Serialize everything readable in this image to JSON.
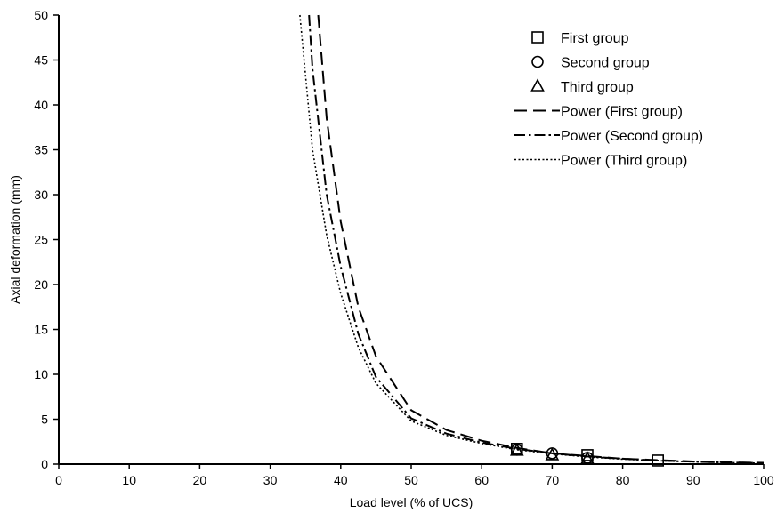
{
  "chart_data": {
    "type": "scatter",
    "title": "",
    "xlabel": "Load level (% of UCS)",
    "ylabel": "Axial deformation (mm)",
    "xlim": [
      0,
      100
    ],
    "ylim": [
      0,
      50
    ],
    "x_ticks": [
      "0",
      "10",
      "20",
      "30",
      "40",
      "50",
      "60",
      "70",
      "80",
      "90",
      "100"
    ],
    "y_ticks": [
      "0",
      "5",
      "10",
      "15",
      "20",
      "25",
      "30",
      "35",
      "40",
      "45",
      "50"
    ],
    "grid": false,
    "legend_position": "top-right",
    "series": [
      {
        "name": "First group",
        "marker": "square",
        "x": [
          65,
          75,
          85
        ],
        "y": [
          1.7,
          1.0,
          0.4
        ]
      },
      {
        "name": "Second group",
        "marker": "circle",
        "x": [
          65,
          70,
          75
        ],
        "y": [
          1.6,
          1.2,
          0.7
        ]
      },
      {
        "name": "Third group",
        "marker": "triangle",
        "x": [
          65,
          70,
          75
        ],
        "y": [
          1.5,
          1.0,
          0.6
        ]
      }
    ],
    "trendlines": [
      {
        "name": "Power (First group)",
        "style": "dashed",
        "x": [
          36.8,
          38,
          40,
          42.5,
          45,
          50,
          55,
          60,
          65,
          70,
          75,
          80,
          85,
          90,
          95,
          100
        ],
        "y": [
          50,
          38.5,
          27,
          17.5,
          12,
          6,
          3.8,
          2.6,
          1.8,
          1.2,
          0.9,
          0.6,
          0.45,
          0.3,
          0.2,
          0.15
        ]
      },
      {
        "name": "Power (Second group)",
        "style": "dash-dot",
        "x": [
          35.5,
          36,
          38,
          40,
          42.5,
          45,
          50,
          55,
          60,
          65,
          70,
          75,
          80,
          85,
          90,
          95,
          100
        ],
        "y": [
          50,
          44,
          30,
          22,
          14.5,
          9.7,
          5.1,
          3.4,
          2.4,
          1.7,
          1.2,
          0.85,
          0.6,
          0.4,
          0.28,
          0.18,
          0.12
        ]
      },
      {
        "name": "Power (Third group)",
        "style": "dotted",
        "x": [
          34.2,
          36,
          38,
          40,
          42.5,
          45,
          50,
          55,
          60,
          65,
          70,
          75,
          80,
          85,
          90,
          95,
          100
        ],
        "y": [
          50,
          35,
          25.5,
          19,
          13,
          9,
          4.8,
          3.2,
          2.3,
          1.6,
          1.15,
          0.8,
          0.55,
          0.38,
          0.26,
          0.17,
          0.11
        ]
      }
    ]
  }
}
